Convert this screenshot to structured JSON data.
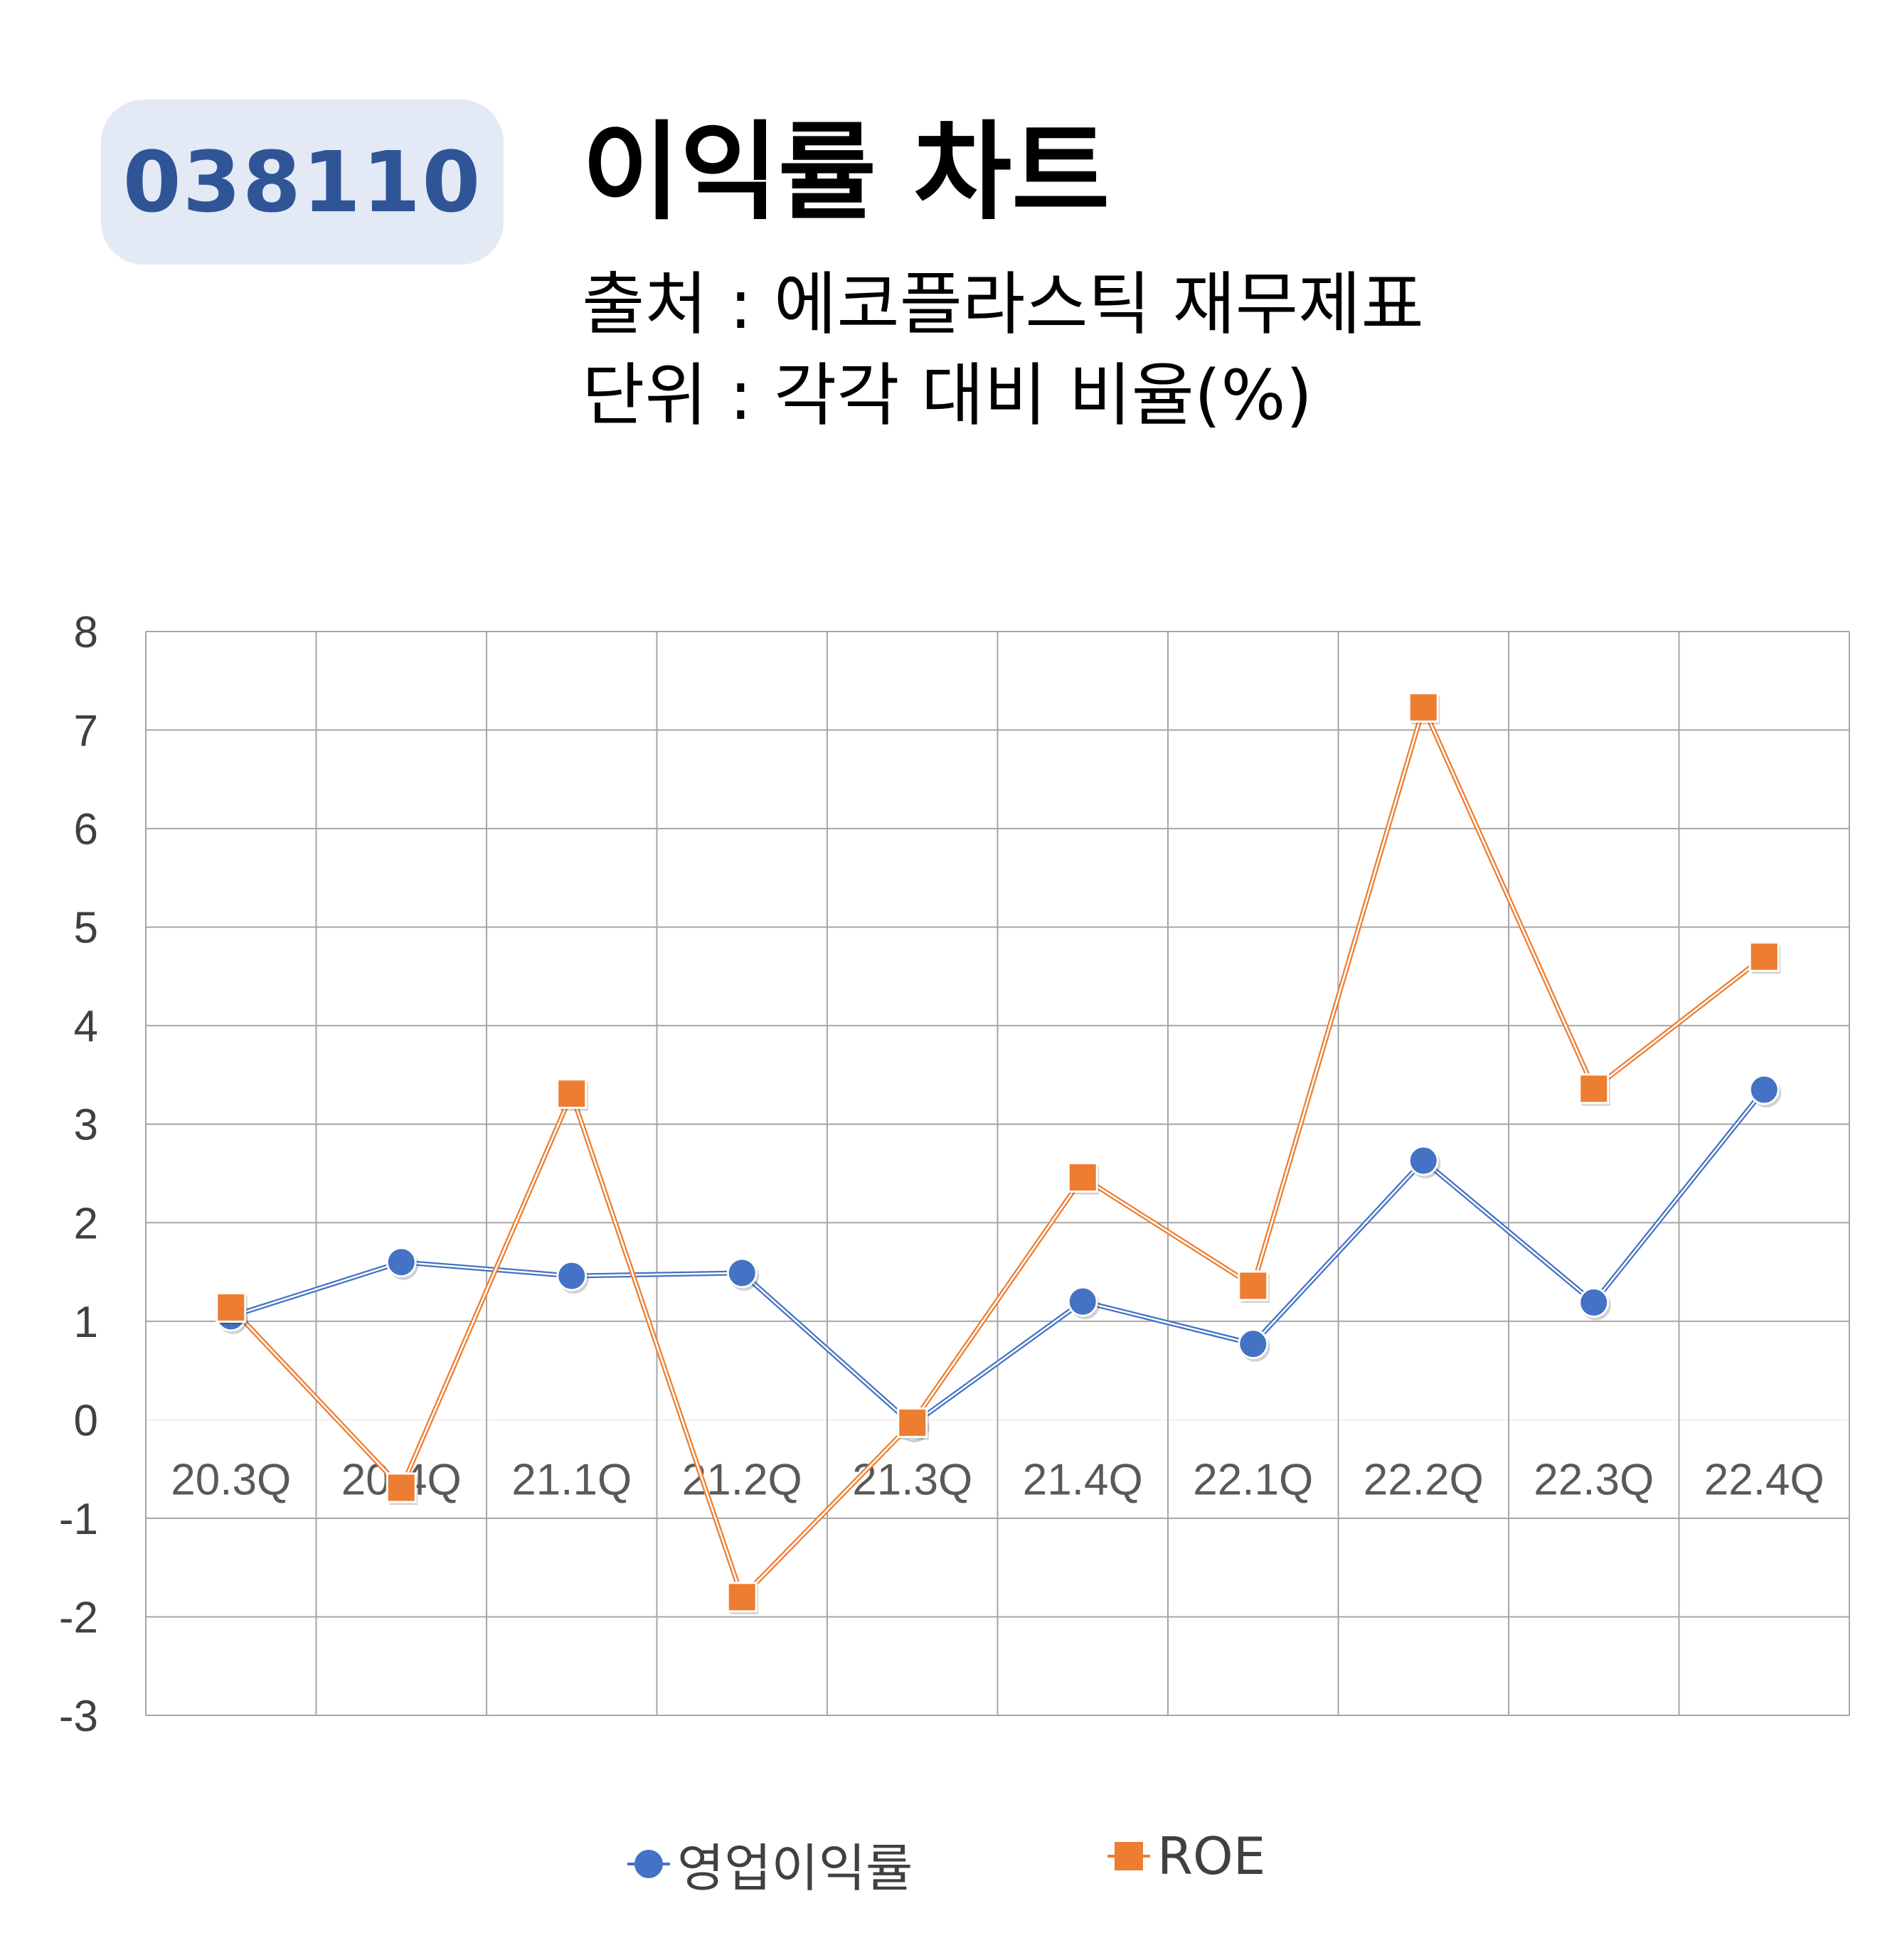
{
  "header": {
    "code": "038110",
    "title": "이익률 차트",
    "source_line": "출처 : 에코플라스틱 재무제표",
    "unit_line": "단위 : 각각 대비 비율(%)"
  },
  "colors": {
    "badge_bg": "#e3e9f5",
    "badge_text": "#2f5597",
    "series_1": "#4472c4",
    "series_2": "#ed7d31",
    "grid": "#a6a6a6"
  },
  "chart_data": {
    "type": "line",
    "categories": [
      "20.3Q",
      "20.4Q",
      "21.1Q",
      "21.2Q",
      "21.3Q",
      "21.4Q",
      "22.1Q",
      "22.2Q",
      "22.3Q",
      "22.4Q"
    ],
    "series": [
      {
        "name": "영업이익률",
        "marker": "circle",
        "color": "#4472c4",
        "values": [
          1.05,
          1.6,
          1.46,
          1.49,
          -0.05,
          1.2,
          0.77,
          2.63,
          1.19,
          3.35
        ]
      },
      {
        "name": "ROE",
        "marker": "square",
        "color": "#ed7d31",
        "values": [
          1.14,
          -0.69,
          3.31,
          -1.8,
          -0.03,
          2.46,
          1.36,
          7.23,
          3.36,
          4.7
        ]
      }
    ],
    "ylim": [
      -3,
      8
    ],
    "yticks": [
      "8",
      "7",
      "6",
      "5",
      "4",
      "3",
      "2",
      "1",
      "0",
      "-1",
      "-2",
      "-3"
    ],
    "grid": true,
    "legend_position": "bottom"
  }
}
